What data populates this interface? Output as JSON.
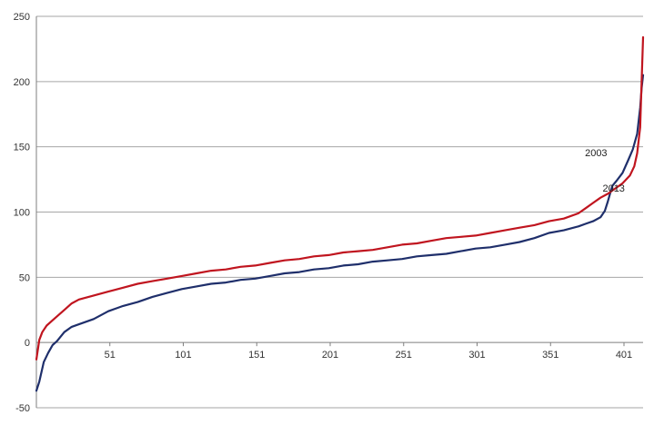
{
  "chart_data": {
    "type": "line",
    "title": "",
    "xlabel": "",
    "ylabel": "",
    "xlim": [
      1,
      414
    ],
    "ylim": [
      -50,
      250
    ],
    "yticks": [
      -50,
      0,
      50,
      100,
      150,
      200,
      250
    ],
    "xticks": [
      51,
      101,
      151,
      201,
      251,
      301,
      351,
      401
    ],
    "grid": "horizontal",
    "legend": "none",
    "series": [
      {
        "name": "2003",
        "color": "#1f2f6b",
        "x": [
          1,
          3,
          6,
          9,
          12,
          15,
          20,
          25,
          30,
          40,
          50,
          60,
          70,
          80,
          90,
          100,
          110,
          120,
          130,
          140,
          150,
          160,
          170,
          180,
          190,
          200,
          210,
          220,
          230,
          240,
          250,
          260,
          270,
          280,
          290,
          300,
          310,
          320,
          330,
          340,
          350,
          360,
          370,
          375,
          380,
          385,
          388,
          390,
          393,
          396,
          400,
          404,
          407,
          410,
          412,
          413,
          414
        ],
        "y": [
          -37,
          -30,
          -15,
          -8,
          -2,
          1,
          8,
          12,
          14,
          18,
          24,
          28,
          31,
          35,
          38,
          41,
          43,
          45,
          46,
          48,
          49,
          51,
          53,
          54,
          56,
          57,
          59,
          60,
          62,
          63,
          64,
          66,
          67,
          68,
          70,
          72,
          73,
          75,
          77,
          80,
          84,
          86,
          89,
          91,
          93,
          96,
          101,
          108,
          120,
          124,
          130,
          140,
          148,
          160,
          180,
          195,
          205
        ]
      },
      {
        "name": "2013",
        "color": "#c0151f",
        "x": [
          1,
          3,
          5,
          8,
          12,
          15,
          20,
          25,
          30,
          40,
          50,
          60,
          70,
          80,
          90,
          100,
          110,
          120,
          130,
          140,
          150,
          160,
          170,
          180,
          190,
          200,
          210,
          220,
          230,
          240,
          250,
          260,
          270,
          280,
          290,
          300,
          310,
          320,
          330,
          340,
          350,
          360,
          370,
          375,
          380,
          385,
          390,
          395,
          400,
          405,
          408,
          410,
          412,
          413,
          414
        ],
        "y": [
          -13,
          2,
          8,
          13,
          17,
          20,
          25,
          30,
          33,
          36,
          39,
          42,
          45,
          47,
          49,
          51,
          53,
          55,
          56,
          58,
          59,
          61,
          63,
          64,
          66,
          67,
          69,
          70,
          71,
          73,
          75,
          76,
          78,
          80,
          81,
          82,
          84,
          86,
          88,
          90,
          93,
          95,
          99,
          103,
          107,
          111,
          114,
          118,
          122,
          128,
          135,
          145,
          165,
          200,
          234
        ]
      }
    ],
    "annotations": [
      {
        "text": "2003",
        "x": 393,
        "y": 140
      },
      {
        "text": "2013",
        "x": 405,
        "y": 113
      }
    ]
  }
}
